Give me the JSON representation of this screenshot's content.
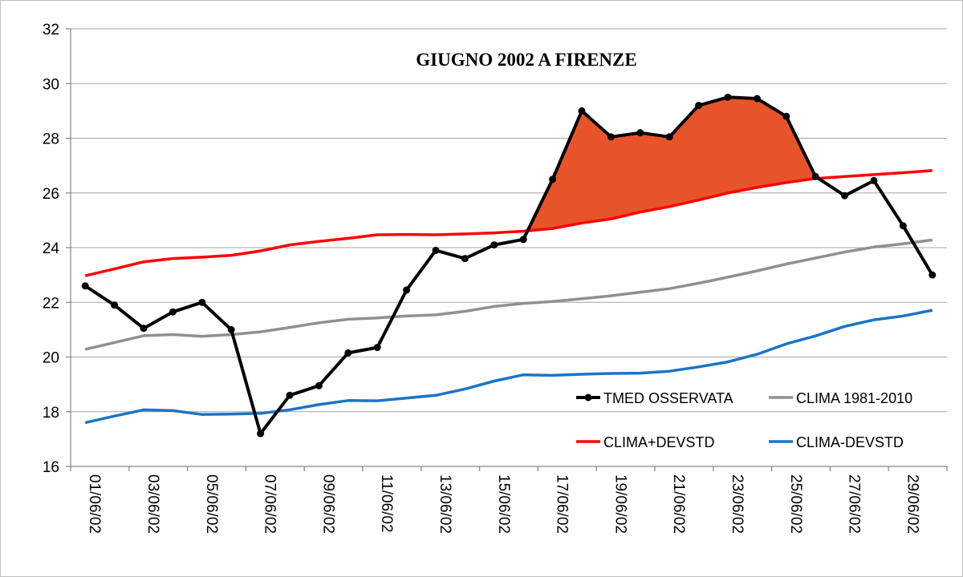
{
  "chart_data": {
    "type": "line",
    "title": "GIUGNO 2002 A FIRENZE",
    "ylim": [
      16,
      32
    ],
    "yticks": [
      16,
      18,
      20,
      22,
      24,
      26,
      28,
      30,
      32
    ],
    "x": [
      "01/06/02",
      "02/06/02",
      "03/06/02",
      "04/06/02",
      "05/06/02",
      "06/06/02",
      "07/06/02",
      "08/06/02",
      "09/06/02",
      "10/06/02",
      "11/06/02",
      "12/06/02",
      "13/06/02",
      "14/06/02",
      "15/06/02",
      "16/06/02",
      "17/06/02",
      "18/06/02",
      "19/06/02",
      "20/06/02",
      "21/06/02",
      "22/06/02",
      "23/06/02",
      "24/06/02",
      "25/06/02",
      "26/06/02",
      "27/06/02",
      "28/06/02",
      "29/06/02",
      "30/06/02"
    ],
    "xtick_labels": [
      "01/06/02",
      "03/06/02",
      "05/06/02",
      "07/06/02",
      "09/06/02",
      "11/06/02",
      "13/06/02",
      "15/06/02",
      "17/06/02",
      "19/06/02",
      "21/06/02",
      "23/06/02",
      "25/06/02",
      "27/06/02",
      "29/06/02"
    ],
    "grid": "horizontal",
    "legend_position": "bottom-right",
    "series": [
      {
        "name": "TMED OSSERVATA",
        "color": "#000000",
        "markers": true,
        "values": [
          22.6,
          21.9,
          21.05,
          21.65,
          22.0,
          21.0,
          17.2,
          18.6,
          18.95,
          20.15,
          20.35,
          22.45,
          23.9,
          23.6,
          24.1,
          24.3,
          26.5,
          29.0,
          28.05,
          28.2,
          28.05,
          29.2,
          29.5,
          29.45,
          28.8,
          26.6,
          25.9,
          26.45,
          24.8,
          23.0
        ]
      },
      {
        "name": "CLIMA 1981-2010",
        "color": "#909090",
        "markers": false,
        "values": [
          20.28,
          20.53,
          20.78,
          20.82,
          20.76,
          20.82,
          20.92,
          21.08,
          21.25,
          21.38,
          21.43,
          21.5,
          21.54,
          21.67,
          21.85,
          21.96,
          22.03,
          22.13,
          22.24,
          22.37,
          22.5,
          22.7,
          22.92,
          23.15,
          23.4,
          23.62,
          23.84,
          24.02,
          24.14,
          24.28
        ]
      },
      {
        "name": "CLIMA+DEVSTD",
        "color": "#ff0000",
        "markers": false,
        "values": [
          22.97,
          23.22,
          23.48,
          23.6,
          23.65,
          23.72,
          23.88,
          24.1,
          24.23,
          24.34,
          24.47,
          24.48,
          24.47,
          24.5,
          24.54,
          24.6,
          24.7,
          24.9,
          25.05,
          25.3,
          25.5,
          25.74,
          26.0,
          26.2,
          26.38,
          26.53,
          26.6,
          26.67,
          26.74,
          26.82
        ]
      },
      {
        "name": "CLIMA-DEVSTD",
        "color": "#1a75c7",
        "markers": false,
        "values": [
          17.6,
          17.84,
          18.07,
          18.04,
          17.9,
          17.91,
          17.94,
          18.07,
          18.26,
          18.41,
          18.4,
          18.5,
          18.6,
          18.83,
          19.12,
          19.35,
          19.33,
          19.37,
          19.4,
          19.41,
          19.48,
          19.64,
          19.82,
          20.1,
          20.48,
          20.77,
          21.12,
          21.36,
          21.5,
          21.71
        ]
      }
    ],
    "highlight_fill_color": "#e8542a",
    "highlight_between": [
      "TMED OSSERVATA",
      "CLIMA+DEVSTD"
    ]
  }
}
